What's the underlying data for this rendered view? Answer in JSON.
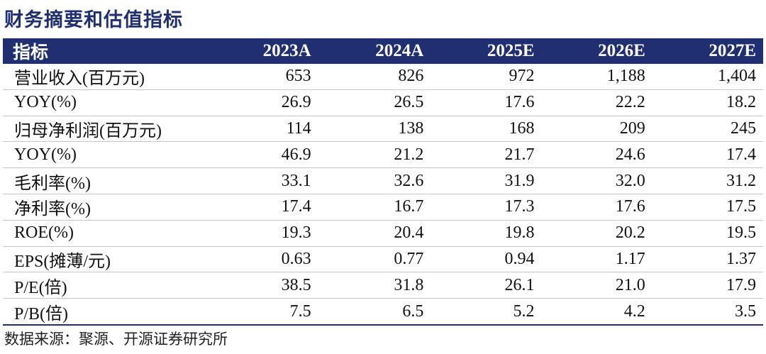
{
  "title": "财务摘要和估值指标",
  "header": {
    "label": "指标",
    "years": [
      "2023A",
      "2024A",
      "2025E",
      "2026E",
      "2027E"
    ]
  },
  "rows": [
    {
      "label": "营业收入(百万元)",
      "values": [
        "653",
        "826",
        "972",
        "1,188",
        "1,404"
      ]
    },
    {
      "label": "YOY(%)",
      "values": [
        "26.9",
        "26.5",
        "17.6",
        "22.2",
        "18.2"
      ]
    },
    {
      "label": "归母净利润(百万元)",
      "values": [
        "114",
        "138",
        "168",
        "209",
        "245"
      ]
    },
    {
      "label": "YOY(%)",
      "values": [
        "46.9",
        "21.2",
        "21.7",
        "24.6",
        "17.4"
      ]
    },
    {
      "label": "毛利率(%)",
      "values": [
        "33.1",
        "32.6",
        "31.9",
        "32.0",
        "31.2"
      ]
    },
    {
      "label": "净利率(%)",
      "values": [
        "17.4",
        "16.7",
        "17.3",
        "17.6",
        "17.5"
      ]
    },
    {
      "label": "ROE(%)",
      "values": [
        "19.3",
        "20.4",
        "19.8",
        "20.2",
        "19.5"
      ]
    },
    {
      "label": "EPS(摊薄/元)",
      "values": [
        "0.63",
        "0.77",
        "0.94",
        "1.17",
        "1.37"
      ]
    },
    {
      "label": "P/E(倍)",
      "values": [
        "38.5",
        "31.8",
        "26.1",
        "21.0",
        "17.9"
      ]
    },
    {
      "label": "P/B(倍)",
      "values": [
        "7.5",
        "6.5",
        "5.2",
        "4.2",
        "3.5"
      ]
    }
  ],
  "source": "数据来源：聚源、开源证券研究所",
  "colors": {
    "header_bg": "#1f2f72",
    "title": "#1f2f72"
  }
}
